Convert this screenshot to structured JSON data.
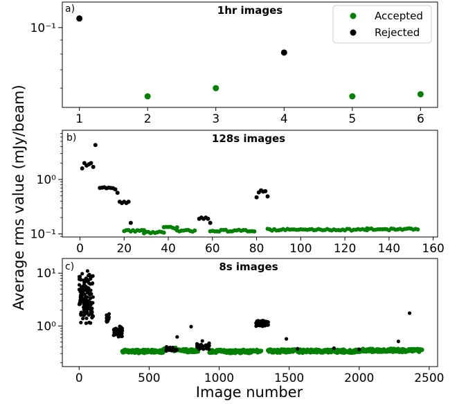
{
  "ylabel": "Average rms value (mJy/beam)",
  "xlabel": "Image number",
  "legend": {
    "placement": "top-right",
    "entries": [
      {
        "label": "Accepted",
        "color": "#008000"
      },
      {
        "label": "Rejected",
        "color": "#000000"
      }
    ]
  },
  "chart_data": [
    {
      "panel": "a)",
      "type": "scatter",
      "title": "1hr images",
      "yscale": "log",
      "xlim": [
        0.75,
        6.25
      ],
      "ylim": [
        0.051,
        0.124
      ],
      "xticks": [
        1,
        2,
        3,
        4,
        5,
        6
      ],
      "xticklabels": [
        "1",
        "2",
        "3",
        "4",
        "5",
        "6"
      ],
      "yticks": [
        0.1
      ],
      "yticklabels": [
        "10⁻¹"
      ],
      "series": [
        {
          "name": "Accepted",
          "color": "#008000",
          "x": [
            2,
            3,
            5,
            6
          ],
          "y": [
            0.056,
            0.06,
            0.056,
            0.057
          ]
        },
        {
          "name": "Rejected",
          "color": "#000000",
          "x": [
            1,
            4
          ],
          "y": [
            0.108,
            0.081
          ]
        }
      ]
    },
    {
      "panel": "b)",
      "type": "scatter",
      "title": "128s images",
      "yscale": "log",
      "xlim": [
        -8,
        162
      ],
      "ylim": [
        0.088,
        8.0
      ],
      "xticks": [
        0,
        20,
        40,
        60,
        80,
        100,
        120,
        140,
        160
      ],
      "xticklabels": [
        "0",
        "20",
        "40",
        "60",
        "80",
        "100",
        "120",
        "140",
        "160"
      ],
      "yticks": [
        0.1,
        1
      ],
      "yticklabels": [
        "10⁻¹",
        "10⁰"
      ],
      "accepted_segments": [
        [
          20,
          29,
          0.115
        ],
        [
          29,
          38,
          0.107
        ],
        [
          38,
          44,
          0.13
        ],
        [
          44,
          52,
          0.114
        ],
        [
          59,
          79,
          0.115
        ],
        [
          85,
          130,
          0.12
        ],
        [
          130,
          153,
          0.122
        ]
      ],
      "rejected_points": [
        [
          1,
          1.6
        ],
        [
          2,
          2.0
        ],
        [
          3,
          1.8
        ],
        [
          4,
          1.9
        ],
        [
          5,
          2.0
        ],
        [
          6,
          1.7
        ],
        [
          7,
          4.3
        ],
        [
          9,
          0.7
        ],
        [
          10,
          0.71
        ],
        [
          11,
          0.72
        ],
        [
          12,
          0.69
        ],
        [
          13,
          0.71
        ],
        [
          14,
          0.7
        ],
        [
          15,
          0.69
        ],
        [
          16,
          0.66
        ],
        [
          17,
          0.57
        ],
        [
          18,
          0.39
        ],
        [
          19,
          0.37
        ],
        [
          20,
          0.39
        ],
        [
          21,
          0.37
        ],
        [
          22,
          0.39
        ],
        [
          23,
          0.16
        ],
        [
          54,
          0.19
        ],
        [
          55,
          0.2
        ],
        [
          56,
          0.19
        ],
        [
          57,
          0.2
        ],
        [
          58,
          0.19
        ],
        [
          59,
          0.16
        ],
        [
          80,
          0.47
        ],
        [
          81,
          0.58
        ],
        [
          82,
          0.63
        ],
        [
          83,
          0.6
        ],
        [
          84,
          0.61
        ],
        [
          85,
          0.49
        ]
      ]
    },
    {
      "panel": "c)",
      "type": "scatter",
      "title": "8s images",
      "yscale": "log",
      "xlim": [
        -120,
        2560
      ],
      "ylim": [
        0.17,
        19
      ],
      "xticks": [
        0,
        500,
        1000,
        1500,
        2000,
        2500
      ],
      "xticklabels": [
        "0",
        "500",
        "1000",
        "1500",
        "2000",
        "2500"
      ],
      "yticks": [
        1,
        10
      ],
      "yticklabels": [
        "10⁰",
        "10¹"
      ],
      "accepted_segments": [
        [
          310,
          600,
          0.33
        ],
        [
          600,
          700,
          0.36
        ],
        [
          700,
          850,
          0.34
        ],
        [
          930,
          1300,
          0.33
        ],
        [
          1350,
          2000,
          0.335
        ],
        [
          2000,
          2450,
          0.345
        ]
      ],
      "rejected_points": [
        [
          10,
          3.5
        ],
        [
          20,
          5.5
        ],
        [
          30,
          4.2
        ],
        [
          40,
          3.0
        ],
        [
          50,
          8.0
        ],
        [
          60,
          11.0
        ],
        [
          70,
          6.5
        ],
        [
          80,
          4.0
        ],
        [
          95,
          1.5
        ],
        [
          200,
          1.45
        ],
        [
          205,
          1.35
        ],
        [
          210,
          1.5
        ],
        [
          250,
          0.82
        ],
        [
          270,
          0.78
        ],
        [
          290,
          0.8
        ],
        [
          660,
          0.38
        ],
        [
          700,
          0.62
        ],
        [
          800,
          0.97
        ],
        [
          850,
          0.42
        ],
        [
          880,
          0.52
        ],
        [
          910,
          0.4
        ],
        [
          1270,
          1.2
        ],
        [
          1300,
          1.15
        ],
        [
          1330,
          1.1
        ],
        [
          1350,
          1.05
        ],
        [
          1480,
          0.57
        ],
        [
          1560,
          0.37
        ],
        [
          1820,
          0.38
        ],
        [
          2000,
          0.36
        ],
        [
          2280,
          0.51
        ],
        [
          2360,
          1.75
        ]
      ]
    }
  ]
}
